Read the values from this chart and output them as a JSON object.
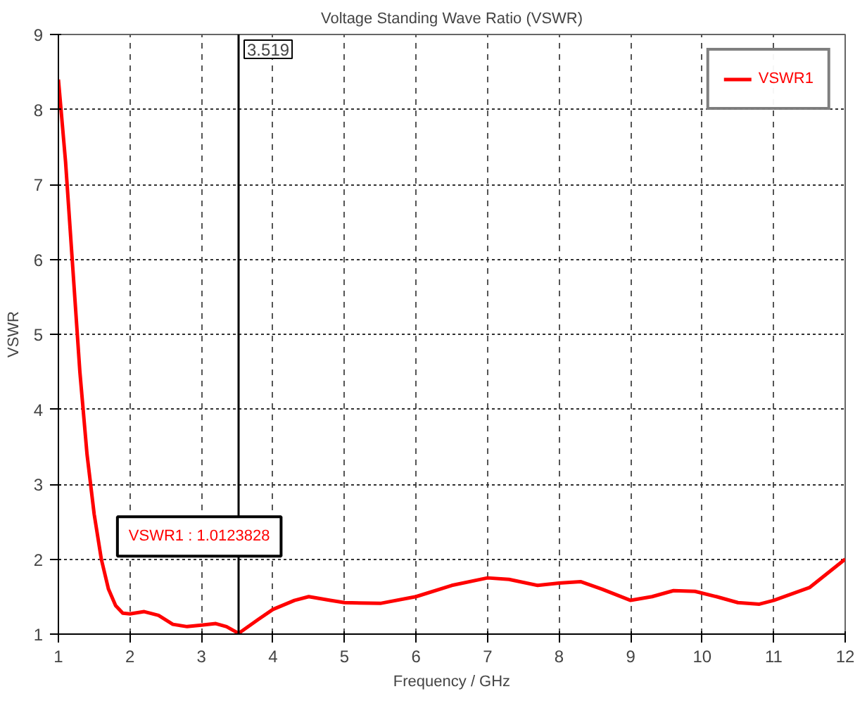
{
  "chart_data": {
    "type": "line",
    "title": "Voltage Standing Wave Ratio (VSWR)",
    "xlabel": "Frequency / GHz",
    "ylabel": "VSWR",
    "x": [
      1,
      1.1,
      1.2,
      1.3,
      1.4,
      1.5,
      1.6,
      1.7,
      1.8,
      1.9,
      2.0,
      2.2,
      2.4,
      2.6,
      2.8,
      3.0,
      3.2,
      3.35,
      3.519,
      3.8,
      4.0,
      4.3,
      4.5,
      4.8,
      5.0,
      5.5,
      6.0,
      6.5,
      7.0,
      7.3,
      7.7,
      8.0,
      8.3,
      8.6,
      9.0,
      9.3,
      9.6,
      9.9,
      10.2,
      10.5,
      10.8,
      11.0,
      11.5,
      12.0
    ],
    "series": [
      {
        "name": "VSWR1",
        "color": "#ff0000",
        "values": [
          8.4,
          7.3,
          5.9,
          4.5,
          3.4,
          2.6,
          2.0,
          1.6,
          1.38,
          1.28,
          1.27,
          1.3,
          1.25,
          1.13,
          1.1,
          1.12,
          1.14,
          1.1,
          1.01,
          1.2,
          1.33,
          1.45,
          1.5,
          1.45,
          1.42,
          1.41,
          1.5,
          1.65,
          1.75,
          1.73,
          1.65,
          1.68,
          1.7,
          1.6,
          1.45,
          1.5,
          1.58,
          1.57,
          1.5,
          1.42,
          1.4,
          1.45,
          1.62,
          2.0
        ]
      }
    ],
    "xlim": [
      1,
      12
    ],
    "ylim": [
      1,
      9
    ],
    "xticks": [
      1,
      2,
      3,
      4,
      5,
      6,
      7,
      8,
      9,
      10,
      11,
      12
    ],
    "yticks": [
      1,
      2,
      3,
      4,
      5,
      6,
      7,
      8,
      9
    ],
    "grid": true,
    "legend": "top right",
    "line_style": "solid",
    "marker": "none",
    "ref_lines": [
      {
        "axis": "x",
        "value": 3.519,
        "label": "3.519",
        "color": "#000000"
      }
    ],
    "annotations": [
      "VSWR1 : 1.0123828"
    ]
  }
}
